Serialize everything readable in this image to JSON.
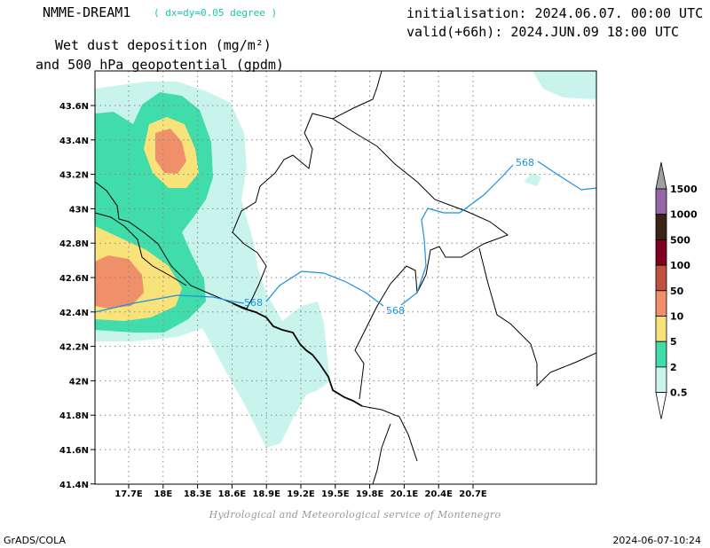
{
  "header": {
    "model": "NMME-DREAM1",
    "resolution": "( dx=dy=0.05 degree )",
    "init": "initialisation: 2024.06.07. 00:00 UTC",
    "valid": "valid(+66h): 2024.JUN.09 18:00 UTC",
    "param_line1": "Wet dust deposition (mg/m²)",
    "param_line2": "and 500 hPa geopotential (gpdm)"
  },
  "axes": {
    "x_ticks": [
      "17.7E",
      "18E",
      "18.3E",
      "18.6E",
      "18.9E",
      "19.2E",
      "19.5E",
      "19.8E",
      "20.1E",
      "20.4E",
      "20.7E"
    ],
    "y_ticks": [
      "43.6N",
      "43.4N",
      "43.2N",
      "43N",
      "42.8N",
      "42.6N",
      "42.4N",
      "42.2N",
      "42N",
      "41.8N",
      "41.6N",
      "41.4N"
    ]
  },
  "contour": {
    "label": "568",
    "color": "#1e90e0"
  },
  "legend": {
    "labels": [
      "1500",
      "1000",
      "500",
      "100",
      "50",
      "10",
      "5",
      "2",
      "0.5"
    ],
    "colors": [
      "#a0a0a0",
      "#9467a8",
      "#3a2418",
      "#800020",
      "#c05040",
      "#f0906a",
      "#f8e27a",
      "#40dcaa",
      "#c8f4ec"
    ]
  },
  "footer": {
    "credit": "Hydrological and Meteorological service of Montenegro",
    "left": "GrADS/COLA",
    "right": "2024-06-07-10:24"
  }
}
